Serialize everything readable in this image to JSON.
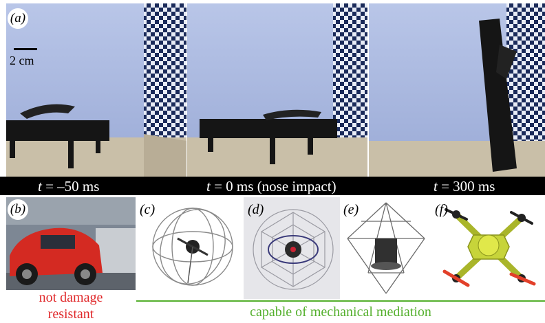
{
  "figure": {
    "panel_a": {
      "tag": "(a)",
      "scale_label": "2 cm",
      "captions": [
        {
          "var": "t",
          "rest": " = –50 ms"
        },
        {
          "var": "t",
          "rest": " = 0 ms (nose impact)"
        },
        {
          "var": "t",
          "rest": " = 300 ms"
        }
      ]
    },
    "bottom_panels": [
      {
        "tag": "(b)"
      },
      {
        "tag": "(c)"
      },
      {
        "tag": "(d)"
      },
      {
        "tag": "(e)"
      },
      {
        "tag": "(f)"
      }
    ],
    "labels": {
      "not_damage_line1": "not damage",
      "not_damage_line2": "resistant",
      "mechanical": "capable of mechanical mediation"
    },
    "colors": {
      "red_label": "#e0282a",
      "green_label": "#55b02e",
      "wall_blue": "#a7b6de"
    }
  }
}
